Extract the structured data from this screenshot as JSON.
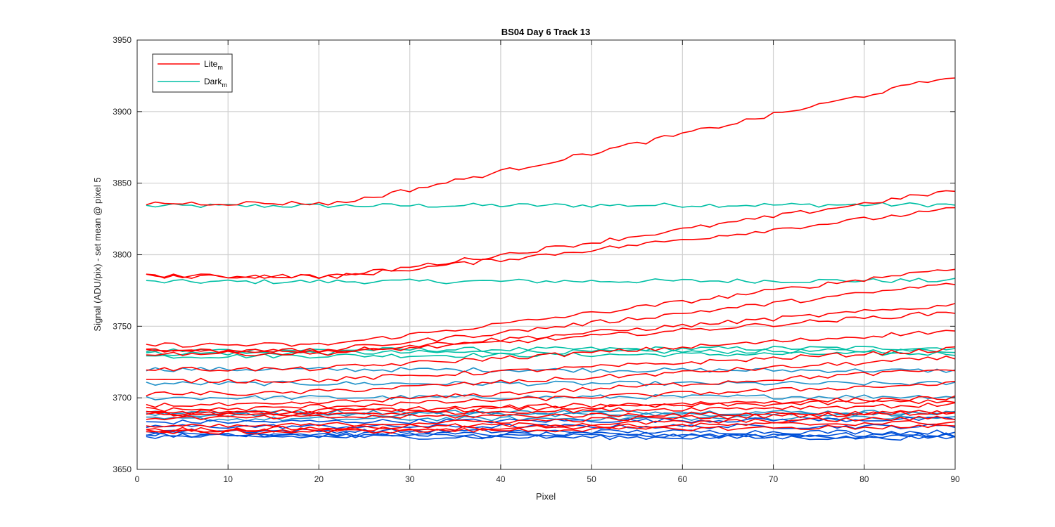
{
  "chart_data": {
    "type": "line",
    "title": "BS04 Day 6 Track 13",
    "xlabel": "Pixel",
    "ylabel": "Signal (ADU/pix) - set mean @ pixel 5",
    "xlim": [
      0,
      90
    ],
    "ylim": [
      3650,
      3950
    ],
    "xticks": [
      0,
      10,
      20,
      30,
      40,
      50,
      60,
      70,
      80,
      90
    ],
    "yticks": [
      3650,
      3700,
      3750,
      3800,
      3850,
      3900,
      3950
    ],
    "grid": true,
    "legend": {
      "placement": "top-left",
      "entries": [
        {
          "label": "Lite",
          "sub": "m",
          "color": "#ff0000"
        },
        {
          "label": "Dark",
          "sub": "m",
          "color": "#00bfa5"
        }
      ]
    },
    "series_groups": [
      {
        "name": "Lite",
        "color": "#ff0000",
        "lines": [
          {
            "start": 3836,
            "end": 3925,
            "knee": 22
          },
          {
            "start": 3785,
            "end": 3845,
            "knee": 22
          },
          {
            "start": 3785,
            "end": 3832,
            "knee": 22
          },
          {
            "start": 3737,
            "end": 3791,
            "knee": 20
          },
          {
            "start": 3733,
            "end": 3780,
            "knee": 20
          },
          {
            "start": 3733,
            "end": 3765,
            "knee": 22
          },
          {
            "start": 3731,
            "end": 3760,
            "knee": 20
          },
          {
            "start": 3720,
            "end": 3747,
            "knee": 18
          },
          {
            "start": 3712,
            "end": 3734,
            "knee": 18
          },
          {
            "start": 3703,
            "end": 3728,
            "knee": 15
          },
          {
            "start": 3695,
            "end": 3720,
            "knee": 15
          },
          {
            "start": 3692,
            "end": 3710,
            "knee": 10
          },
          {
            "start": 3690,
            "end": 3700,
            "knee": 10
          },
          {
            "start": 3689,
            "end": 3698,
            "knee": 10
          },
          {
            "start": 3688,
            "end": 3695,
            "knee": 10
          },
          {
            "start": 3686,
            "end": 3690,
            "knee": 10
          },
          {
            "start": 3680,
            "end": 3690,
            "knee": 10
          },
          {
            "start": 3678,
            "end": 3686,
            "knee": 10
          },
          {
            "start": 3677,
            "end": 3683,
            "knee": 10
          },
          {
            "start": 3676,
            "end": 3680,
            "knee": 10
          }
        ]
      },
      {
        "name": "Dark",
        "color": "#00bfa5",
        "lines": [
          {
            "start": 3834,
            "end": 3835,
            "knee": 0
          },
          {
            "start": 3781,
            "end": 3782,
            "knee": 0
          },
          {
            "start": 3733,
            "end": 3735,
            "knee": 0
          },
          {
            "start": 3731,
            "end": 3733,
            "knee": 0
          },
          {
            "start": 3729,
            "end": 3731,
            "knee": 0
          }
        ]
      },
      {
        "name": "Dark",
        "color": "#1e90c8",
        "lines": [
          {
            "start": 3720,
            "end": 3719,
            "knee": 0
          },
          {
            "start": 3710,
            "end": 3710,
            "knee": 0
          },
          {
            "start": 3700,
            "end": 3701,
            "knee": 0
          },
          {
            "start": 3690,
            "end": 3690,
            "knee": 0
          },
          {
            "start": 3688,
            "end": 3689,
            "knee": 0
          },
          {
            "start": 3685,
            "end": 3686,
            "knee": 0
          }
        ]
      },
      {
        "name": "Dark",
        "color": "#0050d8",
        "lines": [
          {
            "start": 3683,
            "end": 3685,
            "knee": 0
          },
          {
            "start": 3680,
            "end": 3680,
            "knee": 0
          },
          {
            "start": 3677,
            "end": 3676,
            "knee": 0
          },
          {
            "start": 3675,
            "end": 3674,
            "knee": 0
          },
          {
            "start": 3674,
            "end": 3673,
            "knee": 0
          },
          {
            "start": 3673,
            "end": 3672,
            "knee": 0
          }
        ]
      }
    ]
  }
}
